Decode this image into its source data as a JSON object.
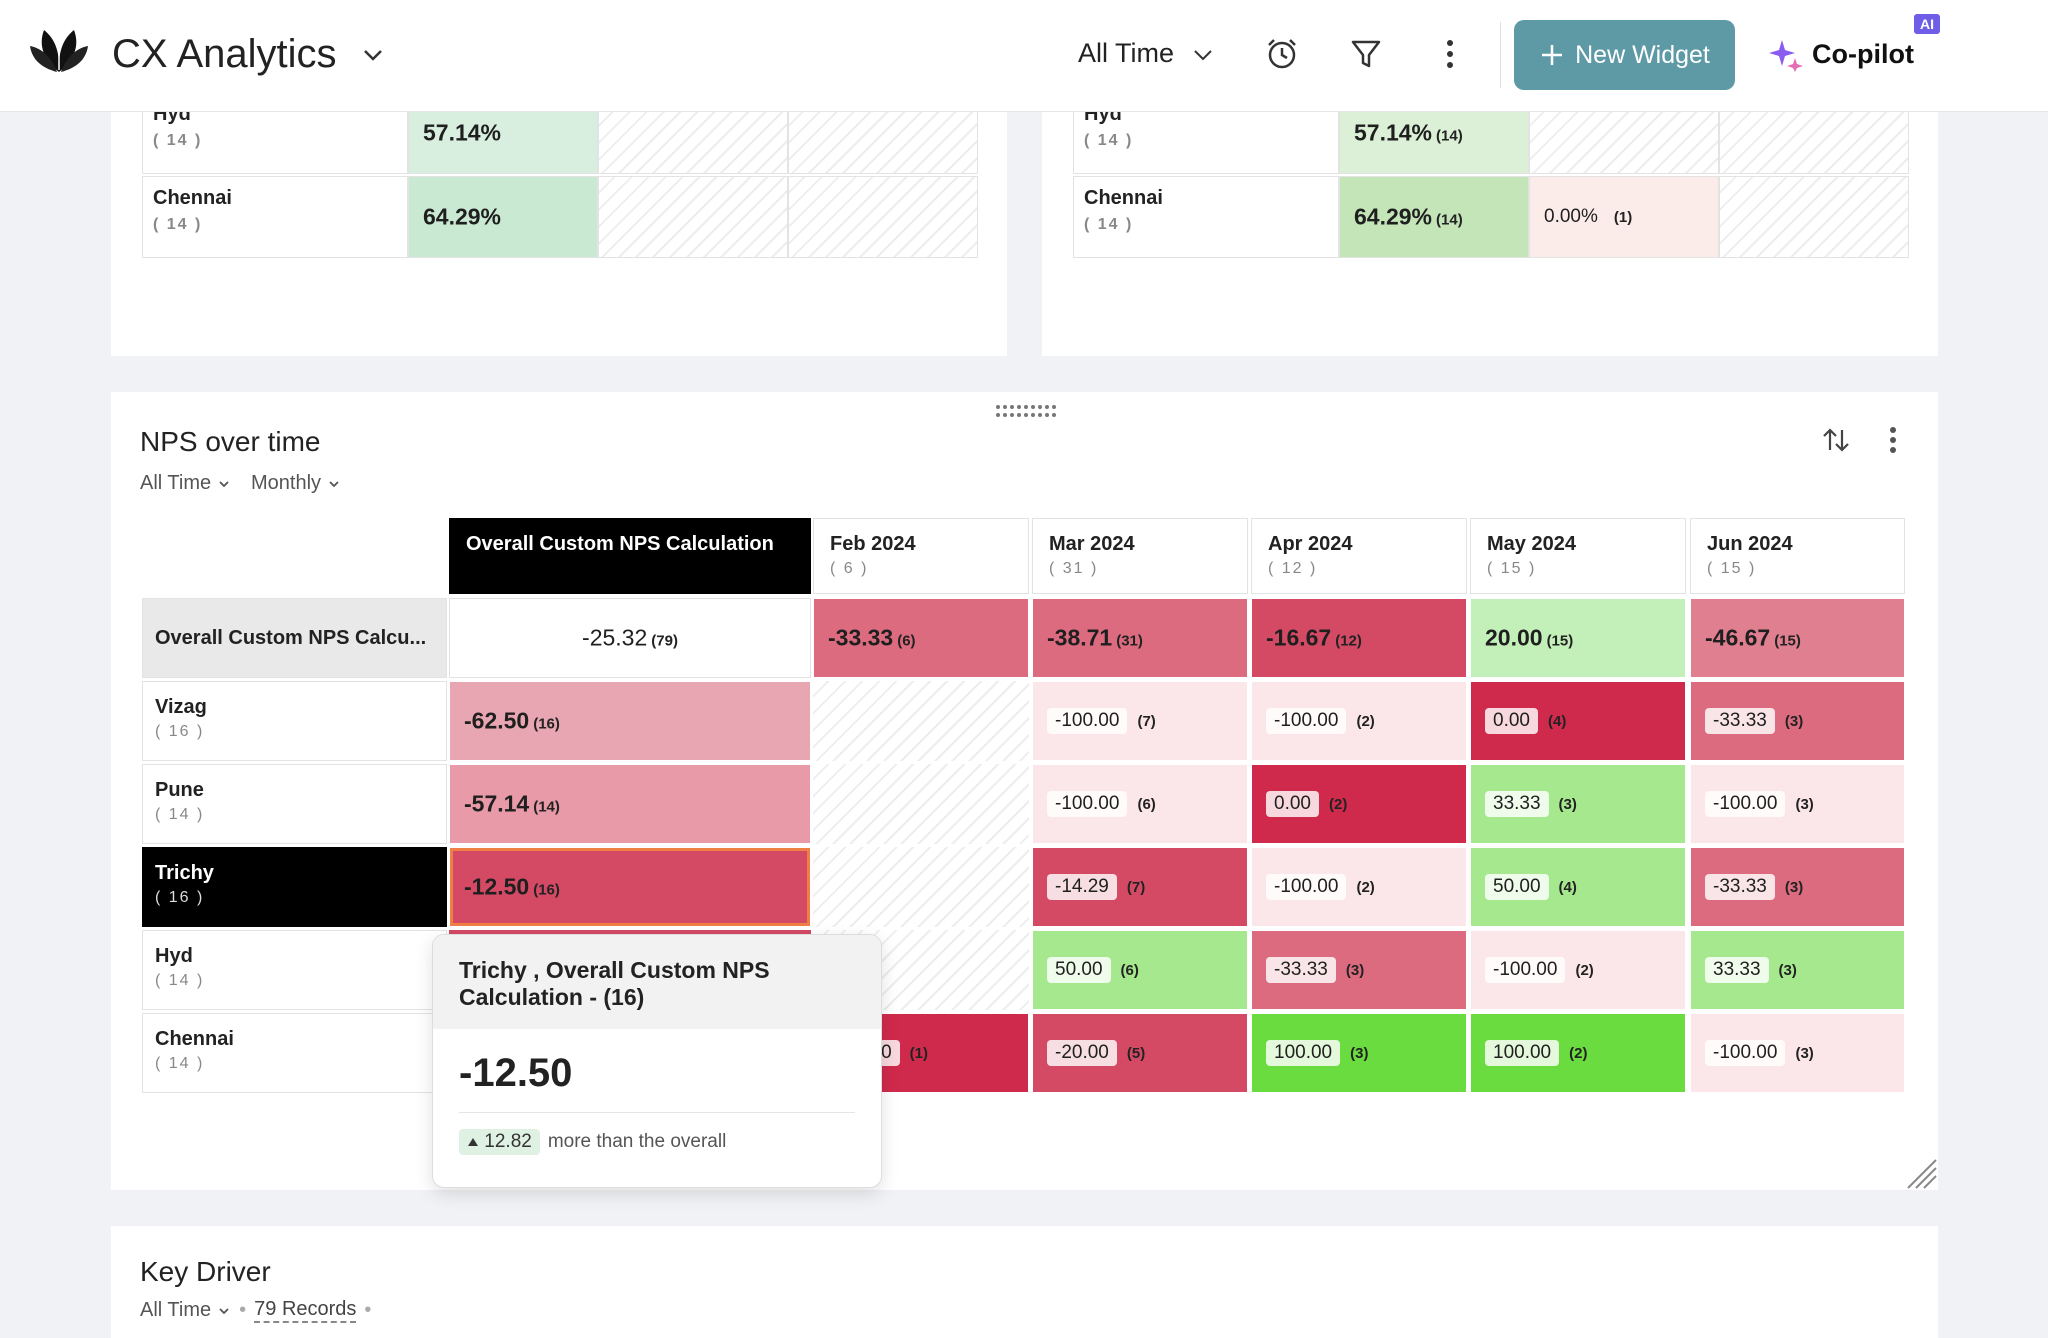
{
  "header": {
    "app_title": "CX Analytics",
    "time_filter": "All Time",
    "new_widget_label": "New Widget",
    "copilot_label": "Co-pilot",
    "ai_badge": "AI",
    "accent_color": "#5e9aa5"
  },
  "top_left_table": {
    "rows": [
      {
        "label": "Hyd",
        "count": "( 14 )",
        "value": "57.14%",
        "value_count": ""
      },
      {
        "label": "Chennai",
        "count": "( 14 )",
        "value": "64.29%",
        "value_count": ""
      }
    ]
  },
  "top_right_table": {
    "rows": [
      {
        "label": "Hyd",
        "count": "( 14 )",
        "value": "57.14%",
        "value_count": "(14)",
        "extra_value": "",
        "extra_count": ""
      },
      {
        "label": "Chennai",
        "count": "( 14 )",
        "value": "64.29%",
        "value_count": "(14)",
        "extra_value": "0.00%",
        "extra_count": "(1)"
      }
    ]
  },
  "nps_widget": {
    "title": "NPS over time",
    "filter_time": "All Time",
    "filter_period": "Monthly",
    "overall_header": "Overall Custom NPS Calculation",
    "columns": [
      {
        "label": "Feb 2024",
        "count": "( 6 )"
      },
      {
        "label": "Mar 2024",
        "count": "( 31 )"
      },
      {
        "label": "Apr 2024",
        "count": "( 12 )"
      },
      {
        "label": "May 2024",
        "count": "( 15 )"
      },
      {
        "label": "Jun 2024",
        "count": "( 15 )"
      }
    ],
    "overall_row": {
      "label": "Overall Custom NPS Calcu...",
      "overall_value": "-25.32",
      "overall_count": "(79)",
      "cells": [
        {
          "value": "-33.33",
          "count": "(6)"
        },
        {
          "value": "-38.71",
          "count": "(31)"
        },
        {
          "value": "-16.67",
          "count": "(12)"
        },
        {
          "value": "20.00",
          "count": "(15)"
        },
        {
          "value": "-46.67",
          "count": "(15)"
        }
      ]
    },
    "rows": [
      {
        "label": "Vizag",
        "count": "( 16 )",
        "overall_value": "-62.50",
        "overall_count": "(16)",
        "cells": [
          null,
          {
            "value": "-100.00",
            "count": "(7)"
          },
          {
            "value": "-100.00",
            "count": "(2)"
          },
          {
            "value": "0.00",
            "count": "(4)"
          },
          {
            "value": "-33.33",
            "count": "(3)"
          }
        ]
      },
      {
        "label": "Pune",
        "count": "( 14 )",
        "overall_value": "-57.14",
        "overall_count": "(14)",
        "cells": [
          null,
          {
            "value": "-100.00",
            "count": "(6)"
          },
          {
            "value": "0.00",
            "count": "(2)"
          },
          {
            "value": "33.33",
            "count": "(3)"
          },
          {
            "value": "-100.00",
            "count": "(3)"
          }
        ]
      },
      {
        "label": "Trichy",
        "count": "( 16 )",
        "overall_value": "-12.50",
        "overall_count": "(16)",
        "cells": [
          null,
          {
            "value": "-14.29",
            "count": "(7)"
          },
          {
            "value": "-100.00",
            "count": "(2)"
          },
          {
            "value": "50.00",
            "count": "(4)"
          },
          {
            "value": "-33.33",
            "count": "(3)"
          }
        ]
      },
      {
        "label": "Hyd",
        "count": "( 14 )",
        "overall_value": "",
        "overall_count": "",
        "cells": [
          null,
          {
            "value": "50.00",
            "count": "(6)"
          },
          {
            "value": "-33.33",
            "count": "(3)"
          },
          {
            "value": "-100.00",
            "count": "(2)"
          },
          {
            "value": "33.33",
            "count": "(3)"
          }
        ]
      },
      {
        "label": "Chennai",
        "count": "( 14 )",
        "overall_value": "",
        "overall_count": "",
        "cells": [
          {
            "value": "0",
            "count": "(1)"
          },
          {
            "value": "-20.00",
            "count": "(5)"
          },
          {
            "value": "100.00",
            "count": "(3)"
          },
          {
            "value": "100.00",
            "count": "(2)"
          },
          {
            "value": "-100.00",
            "count": "(3)"
          }
        ]
      }
    ],
    "tooltip": {
      "title": "Trichy , Overall Custom NPS Calculation - (16)",
      "value": "-12.50",
      "delta": "12.82",
      "delta_text": "more than the overall"
    }
  },
  "key_driver": {
    "title": "Key Driver",
    "filter_time": "All Time",
    "records": "79 Records"
  }
}
